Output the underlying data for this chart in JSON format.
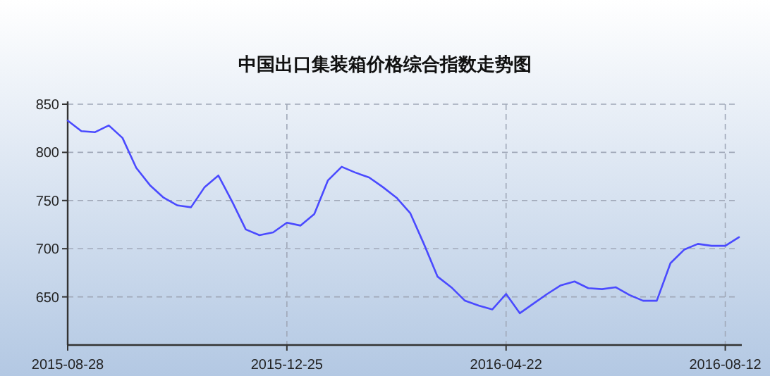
{
  "chart_data": {
    "type": "line",
    "title": "中国出口集装箱价格综合指数走势图",
    "categories": [
      "2015-08-28",
      null,
      null,
      null,
      null,
      null,
      null,
      null,
      null,
      null,
      null,
      null,
      null,
      null,
      null,
      null,
      "2015-12-25",
      null,
      null,
      null,
      null,
      null,
      null,
      null,
      null,
      null,
      null,
      null,
      null,
      null,
      null,
      null,
      "2016-04-22",
      null,
      null,
      null,
      null,
      null,
      null,
      null,
      null,
      null,
      null,
      null,
      null,
      null,
      null,
      null,
      "2016-08-12",
      null
    ],
    "series": [
      {
        "color": "#4a4aff",
        "values": [
          833,
          822,
          821,
          828,
          815,
          784,
          766,
          753,
          745,
          743,
          764,
          776,
          749,
          720,
          714,
          717,
          727,
          724,
          736,
          771,
          785,
          779,
          774,
          764,
          753,
          737,
          705,
          671,
          660,
          646,
          641,
          637,
          653,
          633,
          643,
          653,
          662,
          666,
          659,
          658,
          660,
          652,
          646,
          646,
          685,
          699,
          705,
          703,
          703,
          712
        ]
      }
    ],
    "ylim": [
      600,
      850
    ],
    "yticks": [
      650,
      700,
      750,
      800,
      850
    ],
    "grid": true,
    "marker": "none",
    "line_style": "solid"
  }
}
